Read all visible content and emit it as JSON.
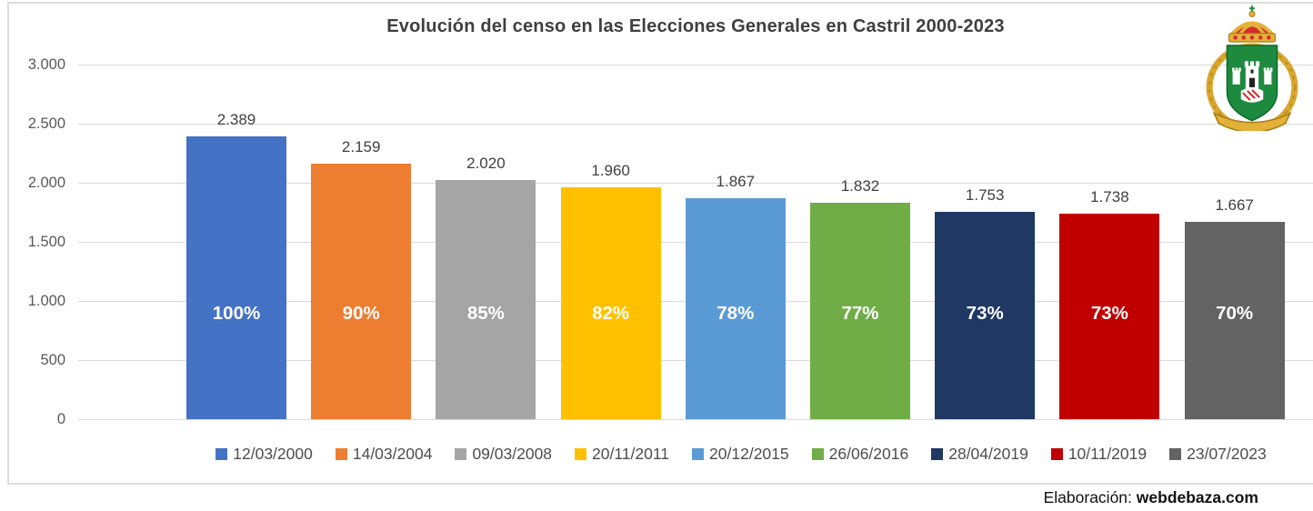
{
  "chart_data": {
    "type": "bar",
    "title": "Evolución del censo en las Elecciones Generales en Castril 2000-2023",
    "xlabel": "",
    "ylabel": "",
    "categories": [
      "12/03/2000",
      "14/03/2004",
      "09/03/2008",
      "20/11/2011",
      "20/12/2015",
      "26/06/2016",
      "28/04/2019",
      "10/11/2019",
      "23/07/2023"
    ],
    "values": [
      2389,
      2159,
      2020,
      1960,
      1867,
      1832,
      1753,
      1738,
      1667
    ],
    "value_labels": [
      "2.389",
      "2.159",
      "2.020",
      "1.960",
      "1.867",
      "1.832",
      "1.753",
      "1.738",
      "1.667"
    ],
    "bar_inner_labels": [
      "100%",
      "90%",
      "85%",
      "82%",
      "78%",
      "77%",
      "73%",
      "73%",
      "70%"
    ],
    "colors": [
      "#4472c4",
      "#ed7d31",
      "#a5a5a5",
      "#ffc000",
      "#5b9bd5",
      "#70ad47",
      "#1f3864",
      "#c00000",
      "#636363"
    ],
    "ylim": [
      0,
      3000
    ],
    "yticks": [
      {
        "v": 0,
        "label": "0"
      },
      {
        "v": 500,
        "label": "500"
      },
      {
        "v": 1000,
        "label": "1.000"
      },
      {
        "v": 1500,
        "label": "1.500"
      },
      {
        "v": 2000,
        "label": "2.000"
      },
      {
        "v": 2500,
        "label": "2.500"
      },
      {
        "v": 3000,
        "label": "3.000"
      }
    ],
    "grid": true,
    "grid_color": "#d9d9d9",
    "legend_position": "bottom"
  },
  "footer": {
    "label": "Elaboración:",
    "site": "webdebaza.com"
  },
  "logo": {
    "name": "escudo-de-castril"
  }
}
